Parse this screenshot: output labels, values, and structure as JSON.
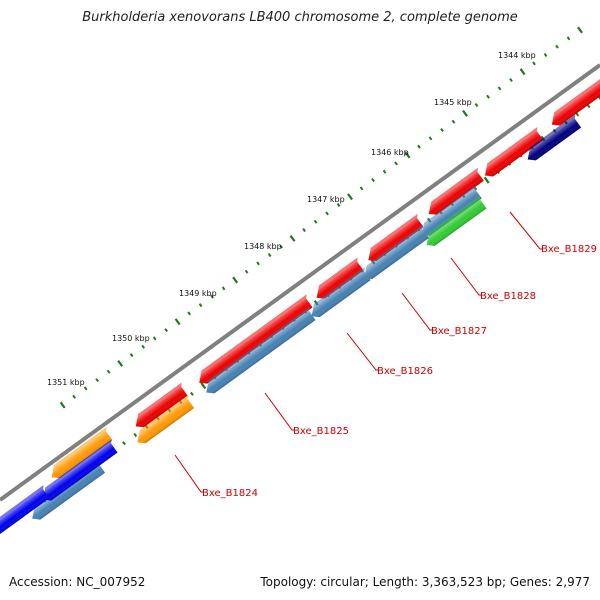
{
  "title": "Burkholderia xenovorans LB400 chromosome 2, complete genome",
  "footer": {
    "accession": "Accession: NC_007952",
    "summary": "Topology: circular; Length: 3,363,523 bp; Genes: 2,977"
  },
  "colors": {
    "backbone": "#808080",
    "tick": "#1f7a1f",
    "label": "#cc0000",
    "feature_red": "#ee0000",
    "feature_steel": "#4682b4",
    "feature_orange": "#ff9900",
    "feature_blue": "#0000ee",
    "feature_navy": "#000080",
    "feature_green": "#33cc33"
  },
  "scale": {
    "labels": [
      "1344 kbp",
      "1345 kbp",
      "1346 kbp",
      "1347 kbp",
      "1348 kbp",
      "1349 kbp",
      "1350 kbp",
      "1351 kbp"
    ]
  },
  "genes": [
    {
      "id": "Bxe_B1824"
    },
    {
      "id": "Bxe_B1825"
    },
    {
      "id": "Bxe_B1826"
    },
    {
      "id": "Bxe_B1827"
    },
    {
      "id": "Bxe_B1828"
    },
    {
      "id": "Bxe_B1829"
    }
  ]
}
